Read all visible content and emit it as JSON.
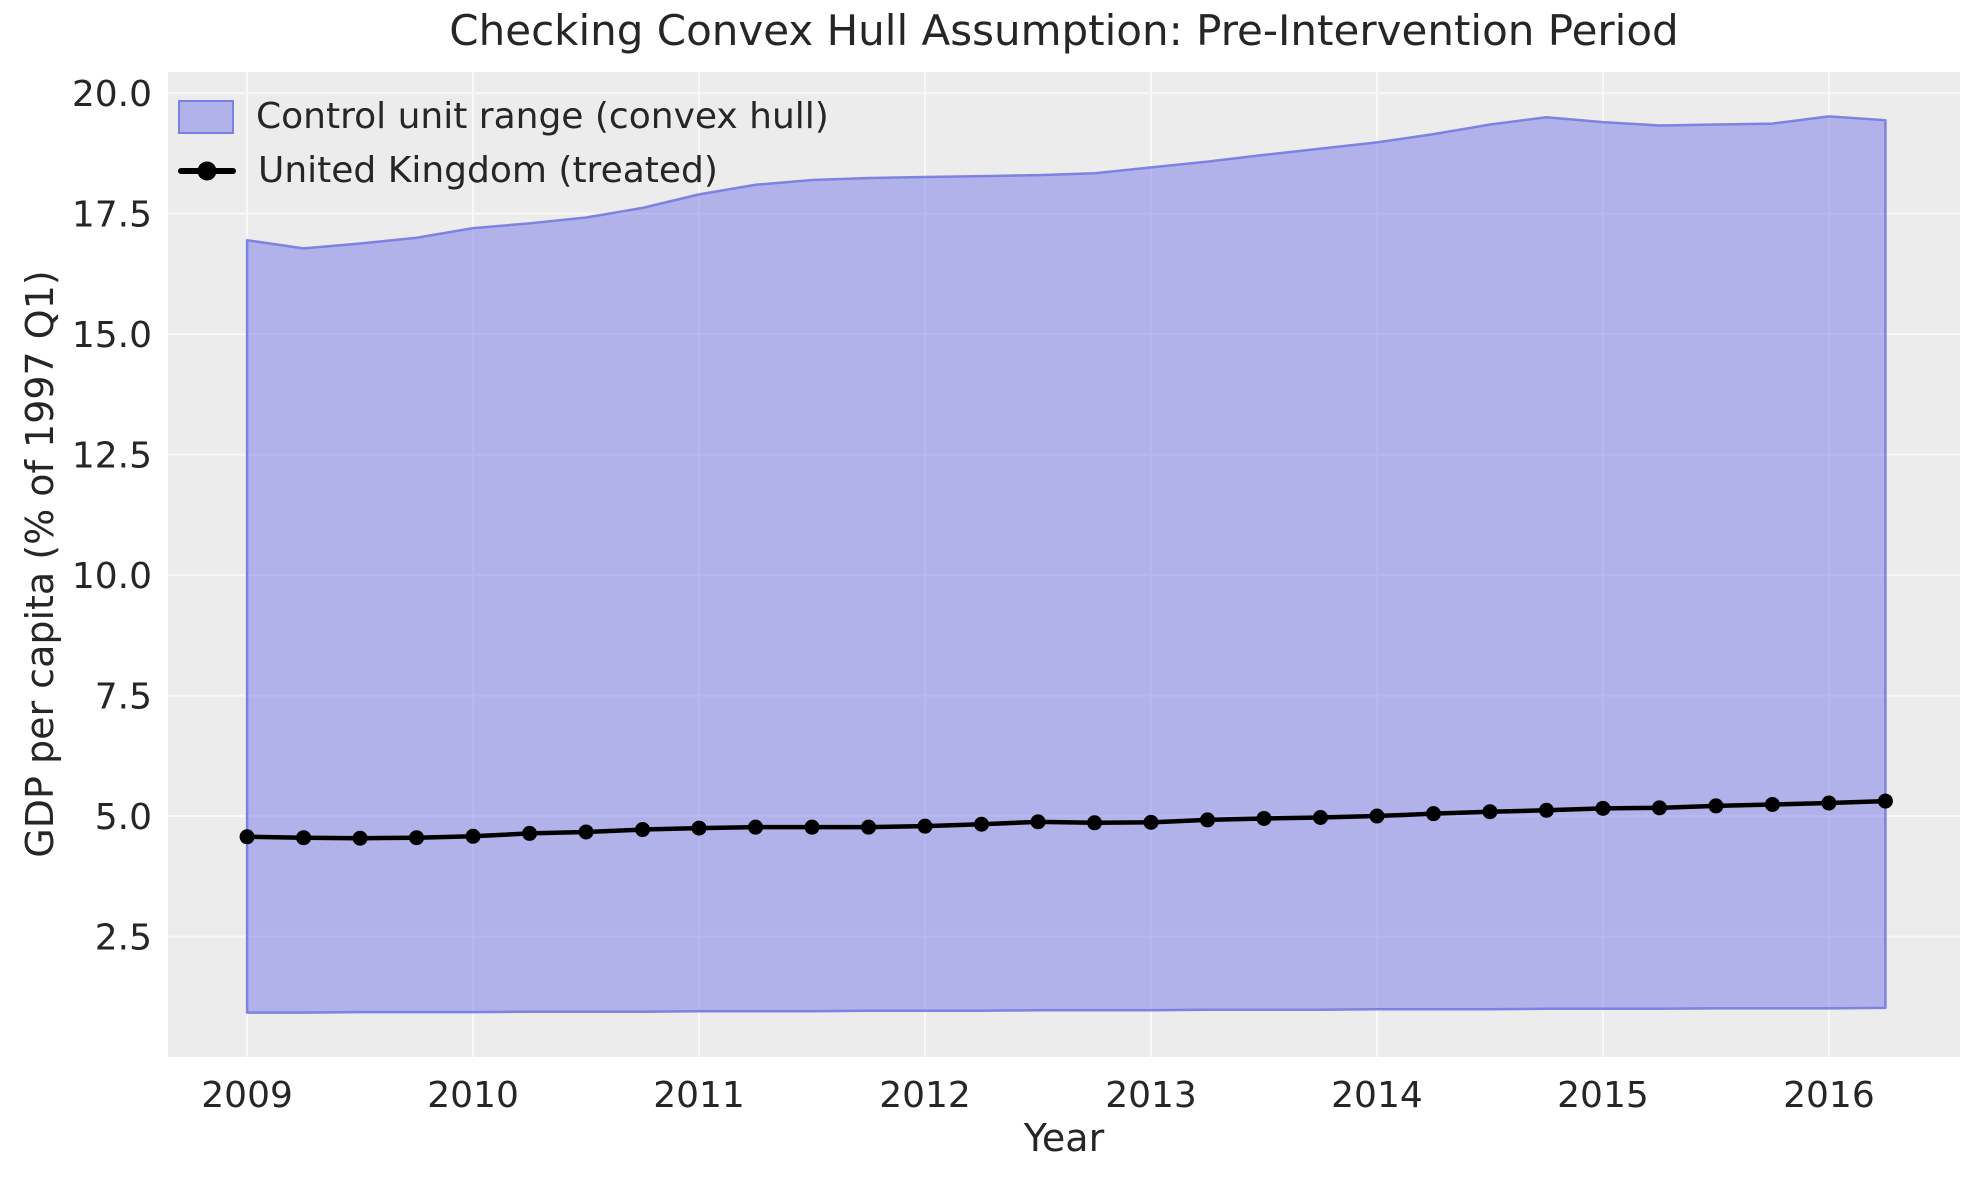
{
  "figure": {
    "title": "Checking Convex Hull Assumption: Pre-Intervention Period",
    "xlabel": "Year",
    "ylabel": "GDP per capita (% of 1997 Q1)"
  },
  "chart_data": {
    "type": "area",
    "title": "Checking Convex Hull Assumption: Pre-Intervention Period",
    "xlabel": "Year",
    "ylabel": "GDP per capita (% of 1997 Q1)",
    "xlim": [
      2008.65,
      2016.58
    ],
    "ylim": [
      0.0,
      20.44
    ],
    "x_ticks": [
      2009,
      2010,
      2011,
      2012,
      2013,
      2014,
      2015,
      2016
    ],
    "y_ticks": [
      2.5,
      5.0,
      7.5,
      10.0,
      12.5,
      15.0,
      17.5,
      20.0
    ],
    "grid": true,
    "legend_position": "upper-left",
    "legend": [
      "Control unit range (convex hull)",
      "United Kingdom (treated)"
    ],
    "x": [
      2009.0,
      2009.25,
      2009.5,
      2009.75,
      2010.0,
      2010.25,
      2010.5,
      2010.75,
      2011.0,
      2011.25,
      2011.5,
      2011.75,
      2012.0,
      2012.25,
      2012.5,
      2012.75,
      2013.0,
      2013.25,
      2013.5,
      2013.75,
      2014.0,
      2014.25,
      2014.5,
      2014.75,
      2015.0,
      2015.25,
      2015.5,
      2015.75,
      2016.0,
      2016.25
    ],
    "series": [
      {
        "name": "Control unit range (convex hull)",
        "type": "band",
        "upper": [
          16.95,
          16.78,
          16.88,
          17.0,
          17.2,
          17.3,
          17.42,
          17.62,
          17.9,
          18.1,
          18.2,
          18.24,
          18.26,
          18.28,
          18.3,
          18.34,
          18.46,
          18.58,
          18.72,
          18.85,
          18.98,
          19.15,
          19.35,
          19.5,
          19.4,
          19.33,
          19.35,
          19.37,
          19.52,
          19.44
        ],
        "lower": [
          0.92,
          0.92,
          0.93,
          0.93,
          0.93,
          0.94,
          0.94,
          0.94,
          0.95,
          0.95,
          0.95,
          0.96,
          0.96,
          0.96,
          0.97,
          0.97,
          0.97,
          0.98,
          0.98,
          0.98,
          0.99,
          0.99,
          0.99,
          1.0,
          1.0,
          1.0,
          1.01,
          1.01,
          1.01,
          1.02
        ]
      },
      {
        "name": "United Kingdom (treated)",
        "type": "line",
        "marker": "circle",
        "values": [
          4.57,
          4.55,
          4.54,
          4.55,
          4.58,
          4.64,
          4.67,
          4.72,
          4.75,
          4.77,
          4.77,
          4.77,
          4.79,
          4.83,
          4.88,
          4.86,
          4.87,
          4.92,
          4.95,
          4.97,
          5.0,
          5.05,
          5.09,
          5.12,
          5.16,
          5.17,
          5.21,
          5.24,
          5.27,
          5.31
        ]
      }
    ]
  },
  "colors": {
    "figure_bg": "#ffffff",
    "axes_bg": "#ececec",
    "grid": "#f8f8f8",
    "hull_fill_hex": "#8084e8",
    "hull_fill_alpha": 0.55,
    "hull_edge_hex": "#767ae0",
    "hull_edge_alpha": 0.9,
    "uk_line": "#000000",
    "text": "#262626"
  }
}
